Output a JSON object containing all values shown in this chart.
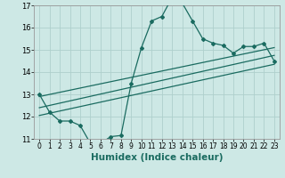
{
  "xlabel": "Humidex (Indice chaleur)",
  "ylabel": "",
  "background_color": "#cde8e5",
  "grid_color": "#aed0cc",
  "line_color": "#1a6b60",
  "xlim": [
    -0.5,
    23.5
  ],
  "ylim": [
    11,
    17
  ],
  "xticks": [
    0,
    1,
    2,
    3,
    4,
    5,
    6,
    7,
    8,
    9,
    10,
    11,
    12,
    13,
    14,
    15,
    16,
    17,
    18,
    19,
    20,
    21,
    22,
    23
  ],
  "yticks": [
    11,
    12,
    13,
    14,
    15,
    16,
    17
  ],
  "main_line_x": [
    0,
    1,
    2,
    3,
    4,
    5,
    6,
    7,
    8,
    9,
    10,
    11,
    12,
    13,
    14,
    15,
    16,
    17,
    18,
    19,
    20,
    21,
    22,
    23
  ],
  "main_line_y": [
    13.0,
    12.2,
    11.8,
    11.8,
    11.6,
    10.8,
    10.8,
    11.1,
    11.15,
    13.5,
    15.1,
    16.3,
    16.5,
    17.35,
    17.1,
    16.3,
    15.5,
    15.3,
    15.2,
    14.85,
    15.15,
    15.15,
    15.3,
    14.5
  ],
  "trend_line1_x": [
    0,
    23
  ],
  "trend_line1_y": [
    12.05,
    14.35
  ],
  "trend_line2_x": [
    0,
    23
  ],
  "trend_line2_y": [
    12.4,
    14.75
  ],
  "trend_line3_x": [
    0,
    23
  ],
  "trend_line3_y": [
    12.9,
    15.1
  ],
  "tick_fontsize": 5.5,
  "label_fontsize": 7.5
}
